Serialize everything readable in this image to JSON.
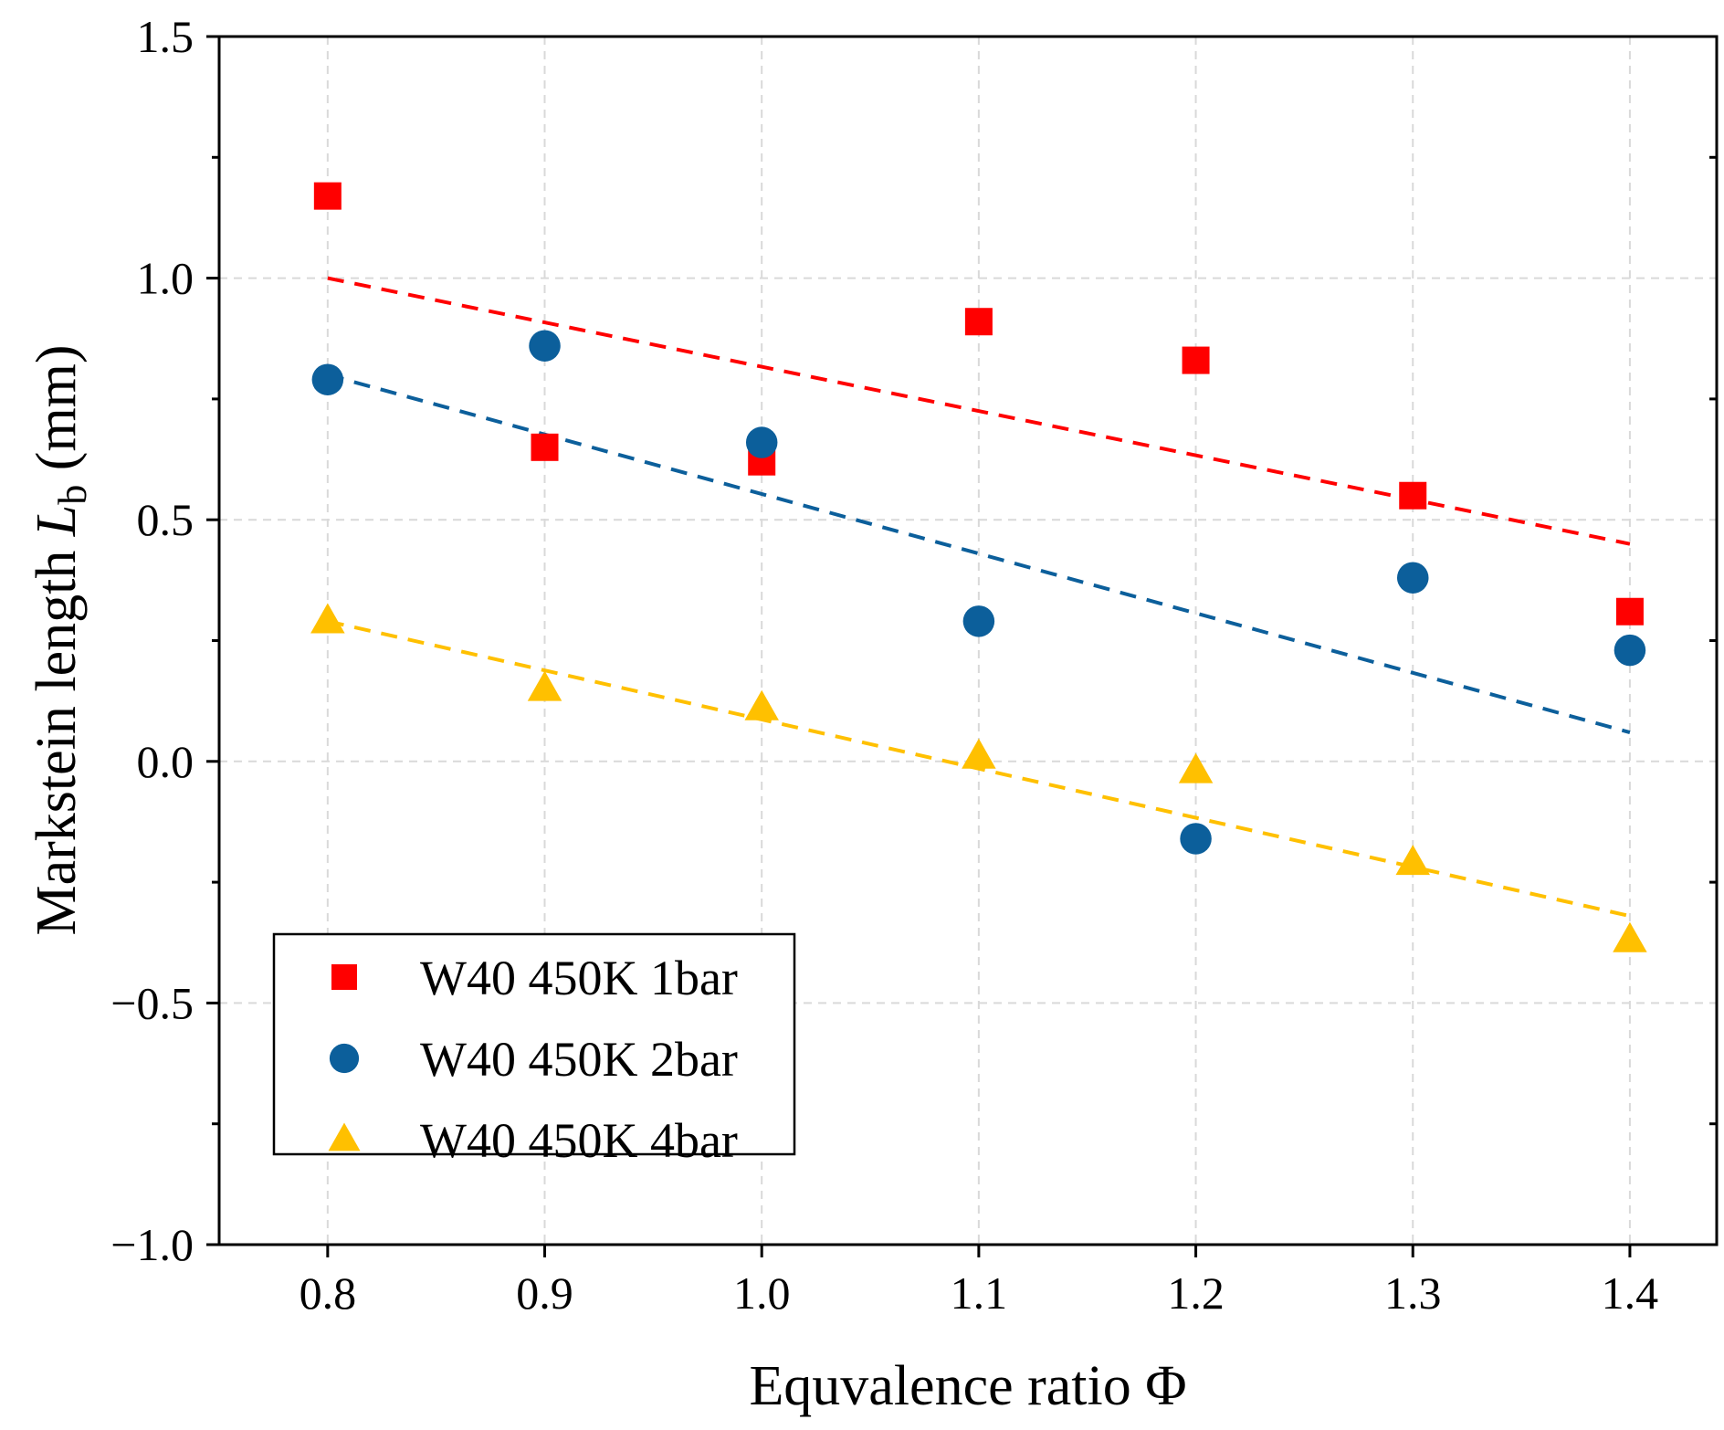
{
  "chart_data": {
    "type": "scatter",
    "title": "",
    "xlabel": "Equvalence ratio Φ",
    "ylabel": "Markstein length L_b (mm)",
    "ylabel_main": "Markstein length ",
    "ylabel_var": "L",
    "ylabel_sub": "b",
    "ylabel_unit": " (mm)",
    "xlim": [
      0.75,
      1.44
    ],
    "ylim": [
      -1.0,
      1.5
    ],
    "xticks": [
      0.8,
      0.9,
      1.0,
      1.1,
      1.2,
      1.3,
      1.4
    ],
    "xtick_labels": [
      "0.8",
      "0.9",
      "1.0",
      "1.1",
      "1.2",
      "1.3",
      "1.4"
    ],
    "yticks": [
      -1.0,
      -0.5,
      0.0,
      0.5,
      1.0,
      1.5
    ],
    "ytick_labels": [
      "−1.0",
      "−0.5",
      "0.0",
      "0.5",
      "1.0",
      "1.5"
    ],
    "grid": true,
    "legend_position": "bottom-left",
    "series": [
      {
        "name": "W40 450K 1bar",
        "marker": "square",
        "color": "#ff0000",
        "x": [
          0.8,
          0.9,
          1.0,
          1.1,
          1.2,
          1.3,
          1.4
        ],
        "y": [
          1.17,
          0.65,
          0.62,
          0.91,
          0.83,
          0.55,
          0.31
        ],
        "fit": {
          "x": [
            0.8,
            1.4
          ],
          "y": [
            1.0,
            0.45
          ]
        }
      },
      {
        "name": "W40 450K 2bar",
        "marker": "circle",
        "color": "#0c5f9b",
        "x": [
          0.8,
          0.9,
          1.0,
          1.1,
          1.2,
          1.3,
          1.4
        ],
        "y": [
          0.79,
          0.86,
          0.66,
          0.29,
          -0.16,
          0.38,
          0.23
        ],
        "fit": {
          "x": [
            0.8,
            1.4
          ],
          "y": [
            0.8,
            0.06
          ]
        }
      },
      {
        "name": "W40 450K 4bar",
        "marker": "triangle",
        "color": "#ffc000",
        "x": [
          0.8,
          0.9,
          1.0,
          1.1,
          1.2,
          1.3,
          1.4
        ],
        "y": [
          0.29,
          0.15,
          0.11,
          0.01,
          -0.02,
          -0.21,
          -0.37
        ],
        "fit": {
          "x": [
            0.8,
            1.4
          ],
          "y": [
            0.29,
            -0.32
          ]
        }
      }
    ]
  }
}
